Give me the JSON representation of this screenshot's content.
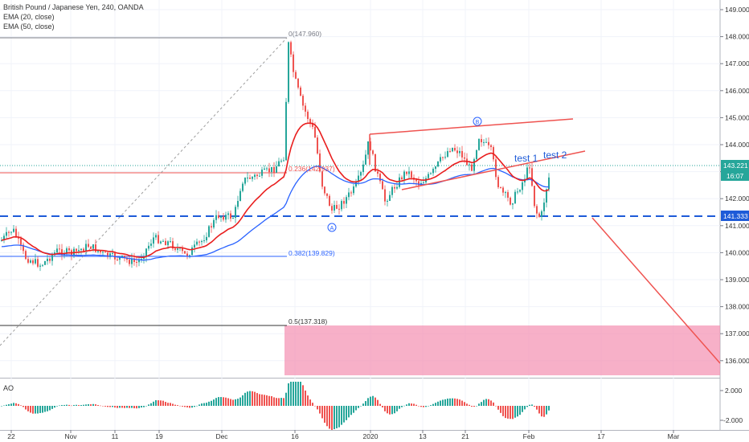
{
  "chart_data": {
    "type": "candlestick",
    "title": "British Pound / Japanese Yen, 240, OANDA",
    "indicators": [
      "EMA (20, close)",
      "EMA (50, close)"
    ],
    "y_ticks": [
      "149.000",
      "148.000",
      "147.000",
      "146.000",
      "145.000",
      "144.000",
      "143.000",
      "142.000",
      "141.000",
      "140.000",
      "139.000",
      "138.000",
      "137.000",
      "136.000"
    ],
    "ylim": [
      135.6,
      149.2
    ],
    "x_ticks": [
      "22",
      "Nov",
      "11",
      "19",
      "Dec",
      "16",
      "2020",
      "13",
      "21",
      "Feb",
      "17",
      "Mar"
    ],
    "price_label": "143.221",
    "countdown": "16:07",
    "support_label": "141.333",
    "support_level": 141.333,
    "fib_levels": [
      {
        "label": "0(147.960)",
        "value": 147.96
      },
      {
        "label": "0.236(142.937)",
        "value": 142.937
      },
      {
        "label": "0.382(139.829)",
        "value": 139.829
      },
      {
        "label": "0.5(137.318)",
        "value": 137.318
      }
    ],
    "annotations": [
      "test 1",
      "test 2"
    ],
    "pivot_markers": [
      "A",
      "B"
    ],
    "ao_panel": {
      "label": "AO",
      "y_ticks": [
        "2.000",
        "-2.000"
      ]
    },
    "colors": {
      "up": "#26a69a",
      "down": "#ef5350",
      "ema20": "#e91e1e",
      "ema50": "#2962ff",
      "support": "#1e5bd8",
      "zone": "#f48fb1"
    }
  }
}
